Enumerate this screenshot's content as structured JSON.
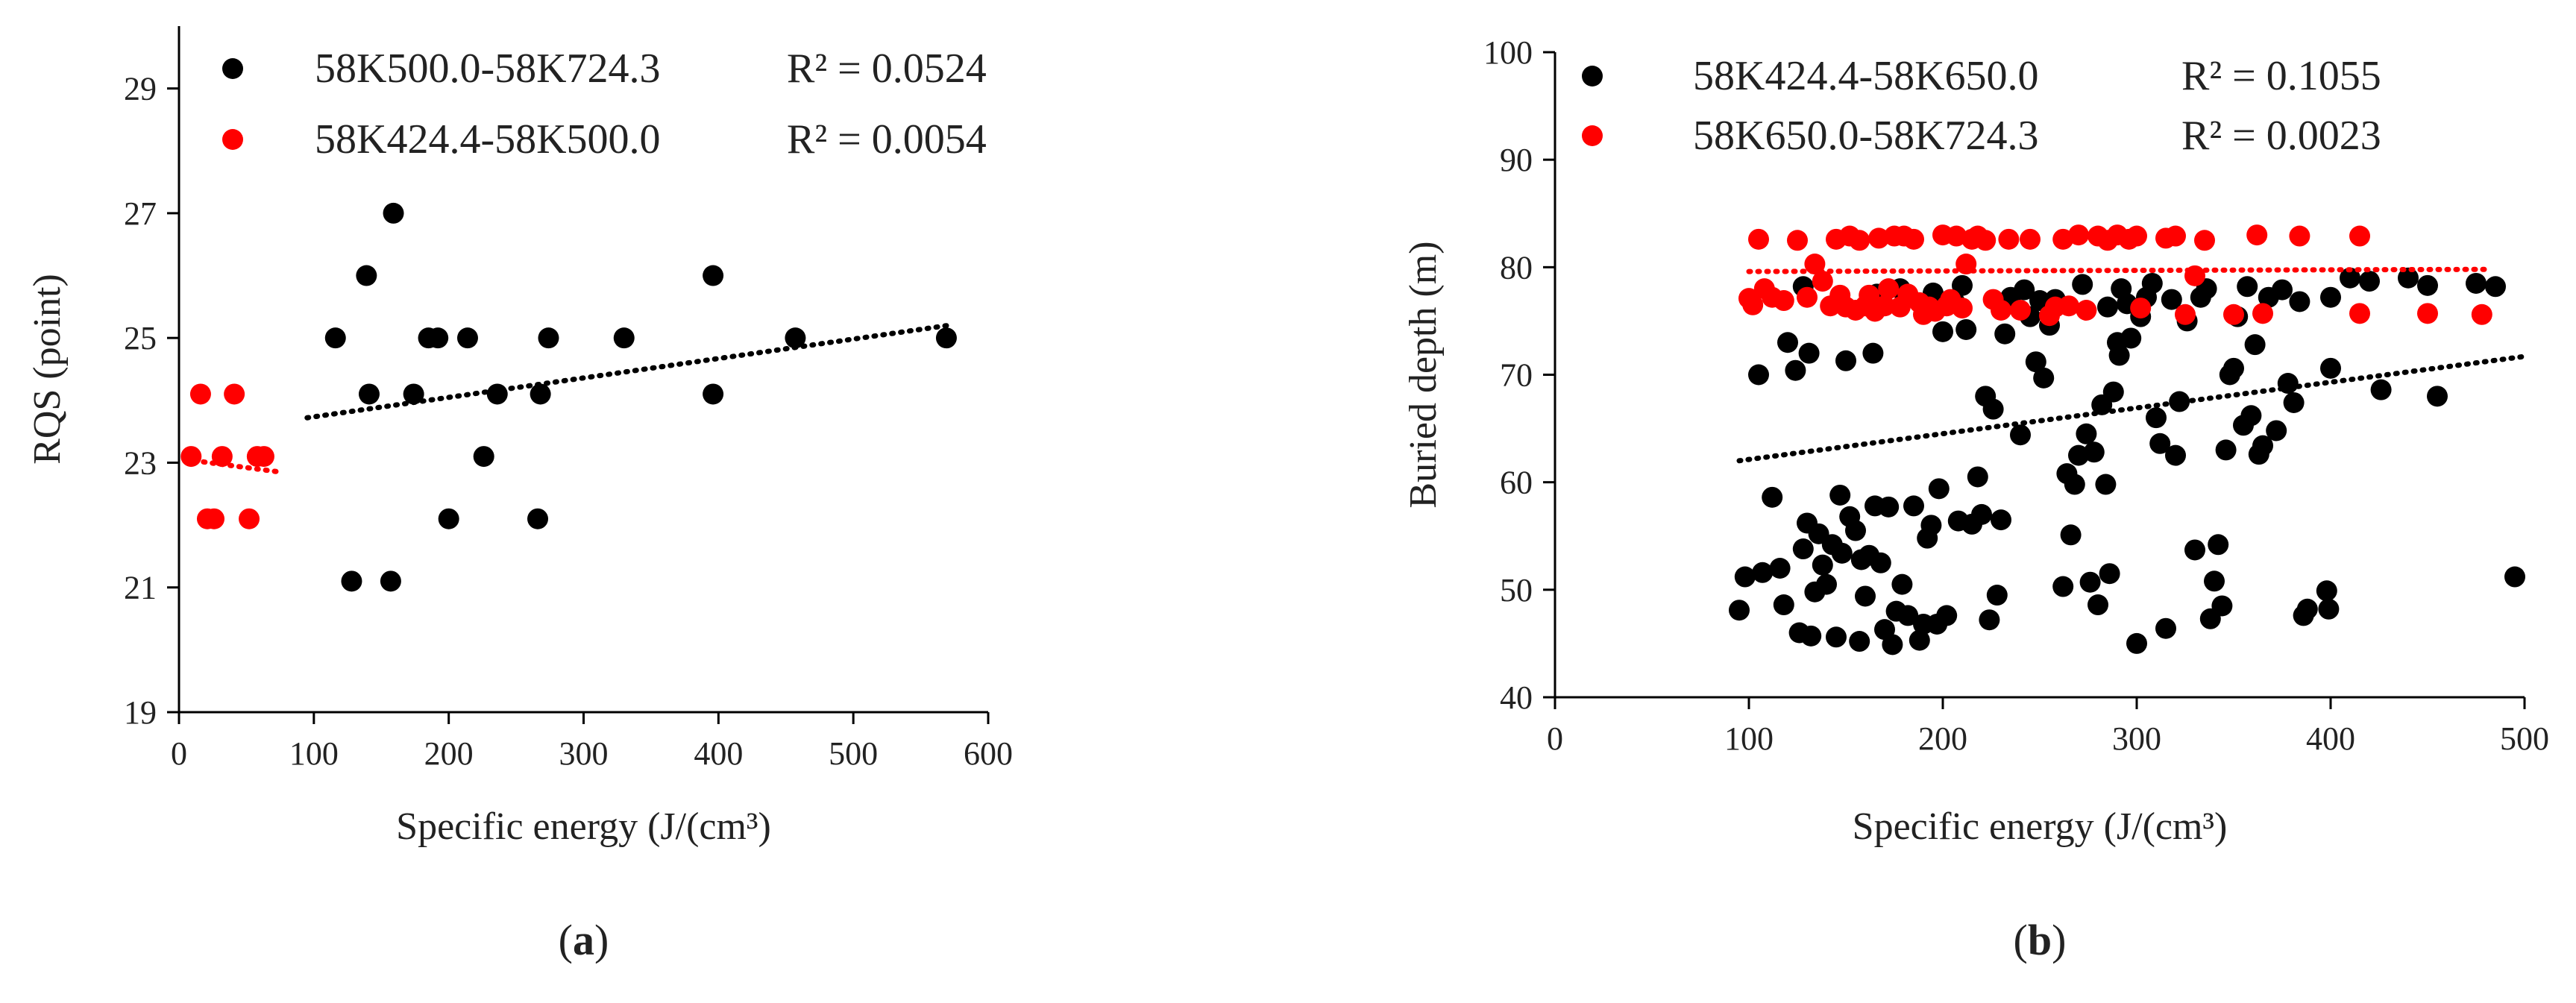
{
  "chart_data": [
    {
      "type": "scatter",
      "panel_label": "a",
      "xlabel": "Specific energy (J/(cm³)",
      "ylabel": "RQS (point)",
      "xlim": [
        0,
        600
      ],
      "ylim": [
        19,
        30
      ],
      "xticks": [
        0,
        100,
        200,
        300,
        400,
        500,
        600
      ],
      "yticks": [
        19,
        21,
        23,
        25,
        27,
        29
      ],
      "legend_position": "top-left",
      "series": [
        {
          "name": "58K500.0-58K724.3",
          "r2": "R² = 0.0524",
          "color": "#000000",
          "trendline": {
            "x": [
              95,
              570
            ],
            "y": [
              23.72,
              25.2
            ]
          },
          "points": [
            [
              116,
              25.0
            ],
            [
              128,
              21.1
            ],
            [
              139,
              26.0
            ],
            [
              141,
              24.1
            ],
            [
              157,
              21.1
            ],
            [
              159,
              27.0
            ],
            [
              174,
              24.1
            ],
            [
              185,
              25.0
            ],
            [
              192,
              25.0
            ],
            [
              200,
              22.1
            ],
            [
              214,
              25.0
            ],
            [
              226,
              23.1
            ],
            [
              236,
              24.1
            ],
            [
              266,
              22.1
            ],
            [
              268,
              24.1
            ],
            [
              274,
              25.0
            ],
            [
              330,
              25.0
            ],
            [
              396,
              26.0
            ],
            [
              396,
              24.1
            ],
            [
              457,
              25.0
            ],
            [
              569,
              25.0
            ]
          ]
        },
        {
          "name": "58K424.4-58K500.0",
          "r2": "R² = 0.0054",
          "color": "#ff0000",
          "trendline": {
            "x": [
              5,
              75
            ],
            "y": [
              23.05,
              22.85
            ]
          },
          "points": [
            [
              9,
              23.1
            ],
            [
              16,
              24.1
            ],
            [
              21,
              22.1
            ],
            [
              26,
              22.1
            ],
            [
              32,
              23.1
            ],
            [
              41,
              24.1
            ],
            [
              52,
              22.1
            ],
            [
              58,
              23.1
            ],
            [
              63,
              23.1
            ]
          ]
        }
      ]
    },
    {
      "type": "scatter",
      "panel_label": "b",
      "xlabel": "Specific energy (J/(cm³)",
      "ylabel": "Buried depth (m)",
      "xlim": [
        0,
        500
      ],
      "ylim": [
        40,
        100
      ],
      "xticks": [
        0,
        100,
        200,
        300,
        400,
        500
      ],
      "yticks": [
        40,
        50,
        60,
        70,
        80,
        90,
        100
      ],
      "legend_position": "top-left",
      "series": [
        {
          "name": "58K424.4-58K650.0",
          "r2": "R² = 0.1055",
          "color": "#000000",
          "trendline": {
            "x": [
              95,
              500
            ],
            "y": [
              62.0,
              71.7
            ]
          },
          "points": [
            [
              95,
              48.1
            ],
            [
              98,
              51.2
            ],
            [
              105,
              70.0
            ],
            [
              107,
              51.6
            ],
            [
              112,
              58.6
            ],
            [
              116,
              52.0
            ],
            [
              118,
              48.6
            ],
            [
              120,
              73.0
            ],
            [
              124,
              70.4
            ],
            [
              126,
              46.0
            ],
            [
              128,
              78.2
            ],
            [
              128,
              53.8
            ],
            [
              130,
              56.2
            ],
            [
              131,
              72.0
            ],
            [
              132,
              45.7
            ],
            [
              134,
              49.8
            ],
            [
              136,
              55.2
            ],
            [
              138,
              52.3
            ],
            [
              140,
              50.5
            ],
            [
              143,
              54.2
            ],
            [
              145,
              45.6
            ],
            [
              147,
              58.8
            ],
            [
              148,
              53.4
            ],
            [
              150,
              71.3
            ],
            [
              152,
              56.8
            ],
            [
              155,
              55.5
            ],
            [
              157,
              45.2
            ],
            [
              158,
              52.8
            ],
            [
              160,
              49.4
            ],
            [
              162,
              53.2
            ],
            [
              164,
              72.0
            ],
            [
              165,
              57.8
            ],
            [
              166,
              77.5
            ],
            [
              168,
              52.5
            ],
            [
              170,
              46.3
            ],
            [
              172,
              57.7
            ],
            [
              174,
              44.9
            ],
            [
              176,
              48.0
            ],
            [
              178,
              78.0
            ],
            [
              179,
              50.5
            ],
            [
              182,
              47.6
            ],
            [
              185,
              57.8
            ],
            [
              188,
              45.3
            ],
            [
              190,
              46.8
            ],
            [
              192,
              54.8
            ],
            [
              194,
              56.0
            ],
            [
              195,
              77.6
            ],
            [
              197,
              46.8
            ],
            [
              198,
              59.4
            ],
            [
              200,
              74.0
            ],
            [
              202,
              47.6
            ],
            [
              206,
              76.8
            ],
            [
              208,
              56.4
            ],
            [
              210,
              78.3
            ],
            [
              212,
              74.2
            ],
            [
              215,
              56.1
            ],
            [
              218,
              60.5
            ],
            [
              220,
              57.0
            ],
            [
              222,
              68.0
            ],
            [
              224,
              47.2
            ],
            [
              226,
              66.8
            ],
            [
              228,
              49.5
            ],
            [
              230,
              56.5
            ],
            [
              232,
              73.8
            ],
            [
              235,
              77.2
            ],
            [
              240,
              64.4
            ],
            [
              242,
              77.9
            ],
            [
              245,
              75.4
            ],
            [
              248,
              71.2
            ],
            [
              250,
              76.9
            ],
            [
              252,
              69.7
            ],
            [
              255,
              74.6
            ],
            [
              258,
              77.0
            ],
            [
              262,
              50.3
            ],
            [
              264,
              60.8
            ],
            [
              266,
              55.1
            ],
            [
              268,
              59.8
            ],
            [
              270,
              62.5
            ],
            [
              272,
              78.4
            ],
            [
              274,
              64.5
            ],
            [
              276,
              50.7
            ],
            [
              278,
              62.8
            ],
            [
              280,
              48.6
            ],
            [
              282,
              67.2
            ],
            [
              284,
              59.8
            ],
            [
              285,
              76.3
            ],
            [
              286,
              51.5
            ],
            [
              288,
              68.4
            ],
            [
              290,
              73.0
            ],
            [
              291,
              71.8
            ],
            [
              292,
              78.0
            ],
            [
              295,
              76.6
            ],
            [
              297,
              73.4
            ],
            [
              300,
              45.0
            ],
            [
              302,
              75.4
            ],
            [
              305,
              77.2
            ],
            [
              308,
              78.5
            ],
            [
              310,
              66.0
            ],
            [
              312,
              63.6
            ],
            [
              315,
              46.4
            ],
            [
              318,
              77.0
            ],
            [
              320,
              62.5
            ],
            [
              322,
              67.5
            ],
            [
              326,
              75.0
            ],
            [
              330,
              53.7
            ],
            [
              333,
              77.2
            ],
            [
              336,
              78.0
            ],
            [
              338,
              47.3
            ],
            [
              340,
              50.8
            ],
            [
              342,
              54.2
            ],
            [
              344,
              48.5
            ],
            [
              346,
              63.0
            ],
            [
              348,
              70.0
            ],
            [
              350,
              70.6
            ],
            [
              352,
              75.4
            ],
            [
              355,
              65.3
            ],
            [
              357,
              78.2
            ],
            [
              359,
              66.2
            ],
            [
              361,
              72.8
            ],
            [
              363,
              62.6
            ],
            [
              365,
              63.4
            ],
            [
              368,
              77.2
            ],
            [
              372,
              64.8
            ],
            [
              375,
              77.9
            ],
            [
              378,
              69.2
            ],
            [
              381,
              67.4
            ],
            [
              384,
              76.8
            ],
            [
              386,
              47.6
            ],
            [
              388,
              48.2
            ],
            [
              398,
              49.9
            ],
            [
              399,
              48.2
            ],
            [
              400,
              70.6
            ],
            [
              400,
              77.2
            ],
            [
              410,
              79.0
            ],
            [
              420,
              78.7
            ],
            [
              426,
              68.6
            ],
            [
              440,
              79.0
            ],
            [
              450,
              78.3
            ],
            [
              455,
              68.0
            ],
            [
              475,
              78.5
            ],
            [
              485,
              78.2
            ],
            [
              495,
              51.2
            ]
          ]
        },
        {
          "name": "58K650.0-58K724.3",
          "r2": "R² = 0.0023",
          "color": "#ff0000",
          "trendline": {
            "x": [
              100,
              480
            ],
            "y": [
              79.6,
              79.8
            ]
          },
          "points": [
            [
              100,
              77.1
            ],
            [
              102,
              76.5
            ],
            [
              105,
              82.6
            ],
            [
              108,
              78.0
            ],
            [
              112,
              77.2
            ],
            [
              118,
              76.9
            ],
            [
              125,
              82.5
            ],
            [
              130,
              77.2
            ],
            [
              134,
              80.3
            ],
            [
              138,
              78.7
            ],
            [
              142,
              76.4
            ],
            [
              145,
              82.6
            ],
            [
              147,
              77.4
            ],
            [
              150,
              76.3
            ],
            [
              152,
              82.9
            ],
            [
              155,
              76.0
            ],
            [
              157,
              82.5
            ],
            [
              160,
              76.4
            ],
            [
              162,
              77.4
            ],
            [
              165,
              75.9
            ],
            [
              167,
              82.7
            ],
            [
              170,
              76.4
            ],
            [
              172,
              78.0
            ],
            [
              175,
              82.9
            ],
            [
              178,
              76.3
            ],
            [
              180,
              82.9
            ],
            [
              182,
              77.5
            ],
            [
              185,
              82.6
            ],
            [
              188,
              76.7
            ],
            [
              190,
              75.6
            ],
            [
              193,
              76.3
            ],
            [
              196,
              75.9
            ],
            [
              200,
              83.0
            ],
            [
              202,
              76.4
            ],
            [
              204,
              77.0
            ],
            [
              207,
              82.9
            ],
            [
              210,
              76.2
            ],
            [
              212,
              80.3
            ],
            [
              215,
              82.6
            ],
            [
              218,
              82.9
            ],
            [
              222,
              82.5
            ],
            [
              226,
              77.0
            ],
            [
              230,
              76.0
            ],
            [
              234,
              82.6
            ],
            [
              240,
              76.0
            ],
            [
              245,
              82.6
            ],
            [
              255,
              75.5
            ],
            [
              258,
              76.3
            ],
            [
              262,
              82.6
            ],
            [
              265,
              76.4
            ],
            [
              270,
              83.0
            ],
            [
              274,
              76.0
            ],
            [
              280,
              82.9
            ],
            [
              285,
              82.5
            ],
            [
              290,
              83.0
            ],
            [
              296,
              82.6
            ],
            [
              300,
              82.9
            ],
            [
              302,
              76.2
            ],
            [
              315,
              82.7
            ],
            [
              320,
              82.9
            ],
            [
              325,
              75.6
            ],
            [
              330,
              79.2
            ],
            [
              335,
              82.5
            ],
            [
              350,
              75.6
            ],
            [
              362,
              83.0
            ],
            [
              365,
              75.7
            ],
            [
              384,
              82.9
            ],
            [
              415,
              82.9
            ],
            [
              415,
              75.7
            ],
            [
              450,
              75.7
            ],
            [
              478,
              75.6
            ]
          ]
        }
      ]
    }
  ]
}
